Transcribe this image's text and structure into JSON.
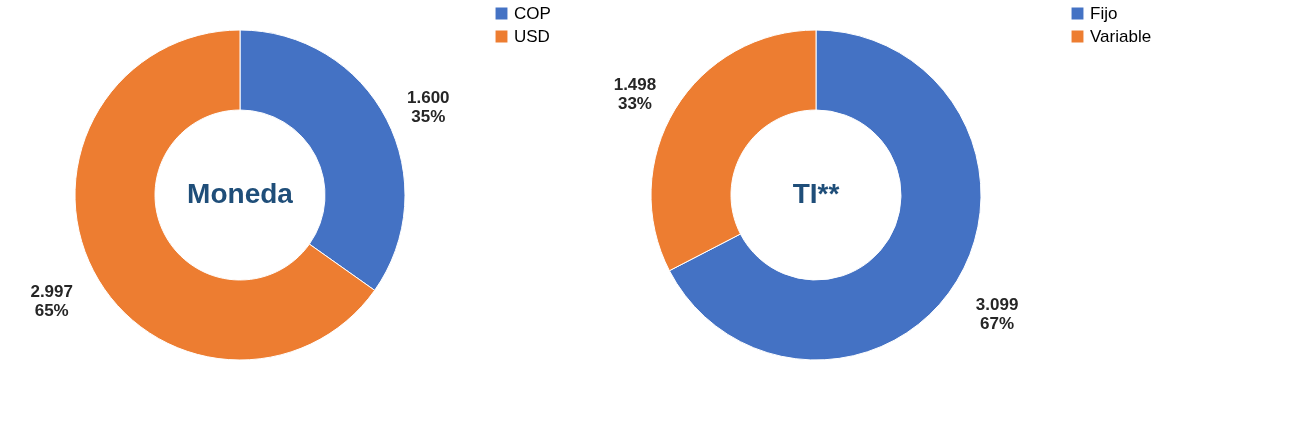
{
  "chart_data": [
    {
      "type": "donut",
      "title": "Moneda",
      "categories": [
        "COP",
        "USD"
      ],
      "values": [
        1600,
        2997
      ],
      "colors": [
        "#4472c4",
        "#ed7d31"
      ],
      "value_labels": [
        "1.600\n35%",
        "2.997\n65%"
      ],
      "legend": "right"
    },
    {
      "type": "donut",
      "title": "TI**",
      "categories": [
        "Fijo",
        "Variable"
      ],
      "values": [
        3099,
        1498
      ],
      "colors": [
        "#4472c4",
        "#ed7d31"
      ],
      "value_labels": [
        "3.099\n67%",
        "1.498\n33%"
      ],
      "legend": "right"
    }
  ]
}
